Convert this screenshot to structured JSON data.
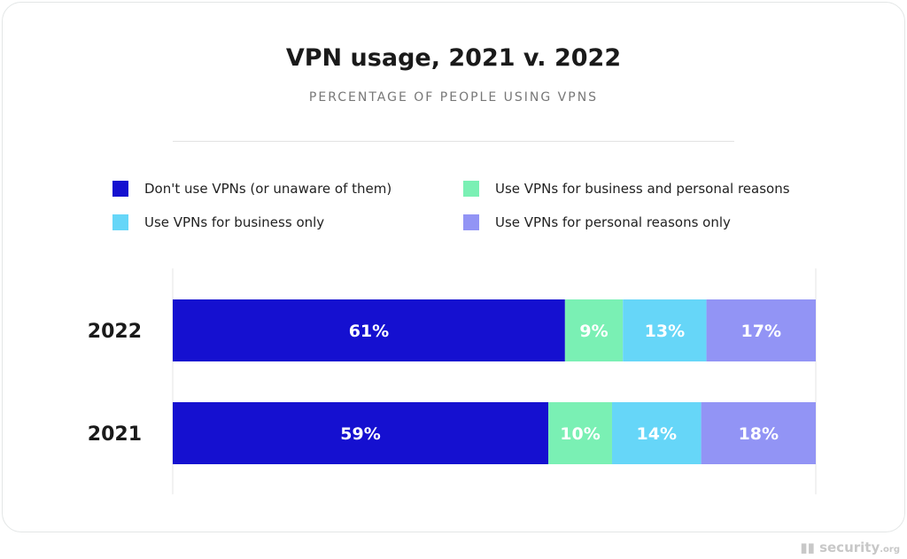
{
  "chart_data": {
    "type": "bar",
    "orientation": "horizontal-stacked",
    "title": "VPN usage, 2021 v. 2022",
    "subtitle": "PERCENTAGE OF PEOPLE USING VPNS",
    "categories": [
      "2022",
      "2021"
    ],
    "series": [
      {
        "name": "Don't use VPNs (or unaware of them)",
        "values": [
          61,
          59
        ],
        "color": "#1510d0"
      },
      {
        "name": "Use VPNs for business and personal reasons",
        "values": [
          9,
          10
        ],
        "color": "#7af0b4"
      },
      {
        "name": "Use VPNs for business only",
        "values": [
          13,
          14
        ],
        "color": "#66d6f8"
      },
      {
        "name": "Use VPNs for personal reasons only",
        "values": [
          17,
          18
        ],
        "color": "#9294f5"
      }
    ],
    "legend": "top",
    "grid": false
  },
  "watermark": "security.org"
}
